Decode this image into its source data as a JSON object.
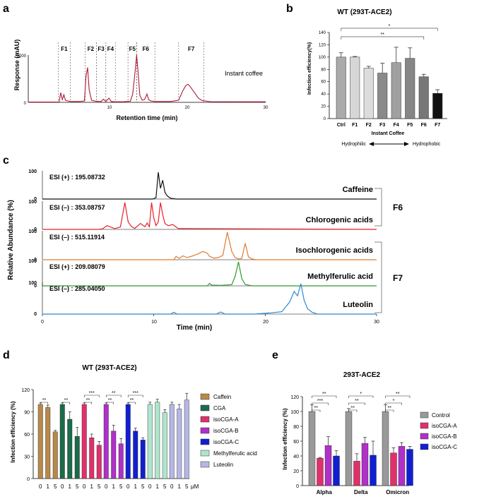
{
  "panel_labels": {
    "a": "a",
    "b": "b",
    "c": "c",
    "d": "d",
    "e": "e"
  },
  "colors": {
    "chrom_a": "#b01835",
    "caffeine": "#111111",
    "chlorogenic": "#e8202a",
    "isochlorogenic": "#e07a2e",
    "methylferulic": "#2f9a2f",
    "luteolin": "#2d86d0",
    "ctrl_bar": "#aaaaaa",
    "f7_bar": "#111111",
    "caffein_bar": "#b8894a",
    "cga_bar": "#1c6b4a",
    "isocga_a_bar": "#e0306a",
    "isocga_b_bar": "#b030c8",
    "isocga_c_bar": "#1020d0",
    "mfa_bar": "#aee6cc",
    "luteolin_bar": "#b6b6e6",
    "control_bar": "#999999"
  },
  "chart_data": [
    {
      "id": "a",
      "type": "line",
      "xlabel": "Retention time (min)",
      "ylabel": "Response (mAU)",
      "xlim": [
        0,
        30
      ],
      "ylim": [
        0,
        3600
      ],
      "x_ticks": [
        "10",
        "20",
        "30"
      ],
      "y_ticks": [
        "0",
        "3000"
      ],
      "annotation": "Instant coffee",
      "fractions": [
        {
          "label": "F1",
          "start": 3.8,
          "end": 5.3
        },
        {
          "label": "F2",
          "start": 7.2,
          "end": 8.6
        },
        {
          "label": "F3",
          "start": 8.6,
          "end": 9.8
        },
        {
          "label": "F4",
          "start": 9.8,
          "end": 11.0
        },
        {
          "label": "F5",
          "start": 12.6,
          "end": 13.7
        },
        {
          "label": "F6",
          "start": 13.7,
          "end": 16.0
        },
        {
          "label": "F7",
          "start": 19.0,
          "end": 22.2
        }
      ],
      "series": [
        {
          "name": "Instant coffee",
          "x": [
            0,
            3.9,
            4.1,
            4.3,
            4.5,
            4.7,
            5.0,
            5.3,
            6.5,
            7.1,
            7.3,
            7.5,
            7.7,
            8.0,
            8.5,
            9.2,
            9.5,
            9.8,
            10.2,
            10.5,
            11.0,
            12.0,
            12.9,
            13.2,
            13.5,
            13.7,
            13.9,
            14.1,
            14.4,
            14.7,
            15.0,
            15.2,
            15.5,
            16.0,
            18.0,
            19.0,
            19.5,
            19.9,
            20.2,
            20.5,
            21.0,
            21.5,
            22.0,
            23.0,
            30
          ],
          "y": [
            20,
            30,
            700,
            200,
            550,
            150,
            100,
            60,
            60,
            100,
            1900,
            2500,
            900,
            150,
            80,
            60,
            230,
            60,
            300,
            60,
            40,
            40,
            80,
            600,
            2200,
            3400,
            2000,
            500,
            150,
            200,
            600,
            200,
            100,
            60,
            60,
            150,
            800,
            1200,
            1300,
            1100,
            700,
            300,
            120,
            50,
            40
          ]
        }
      ]
    },
    {
      "id": "b",
      "type": "bar",
      "title": "WT (293T-ACE2)",
      "ylabel": "Infection efficiency(%)",
      "xlabel": "Instant Coffee",
      "ylim": [
        0,
        140
      ],
      "y_ticks": [
        "0",
        "20",
        "40",
        "60",
        "80",
        "100",
        "120",
        "140"
      ],
      "categories": [
        "Ctrl",
        "F1",
        "F2",
        "F3",
        "F4",
        "F5",
        "F6",
        "F7"
      ],
      "values": [
        100,
        100,
        82,
        74,
        91,
        98,
        68,
        41
      ],
      "errors": [
        7,
        1,
        3,
        16,
        25,
        17,
        4,
        6
      ],
      "fills": [
        "#aaaaaa",
        "#d6d6d6",
        "#dcdcdc",
        "#8a8a8a",
        "#a0a0a0",
        "#868686",
        "#777777",
        "#111111"
      ],
      "sig": [
        {
          "from": "Ctrl",
          "to": "F6",
          "label": "**"
        },
        {
          "from": "Ctrl",
          "to": "F7",
          "label": "*"
        }
      ],
      "hydro_left": "Hydrophilic",
      "hydro_right": "Hydrophobic"
    },
    {
      "id": "c",
      "type": "line",
      "xlabel": "Time (min)",
      "ylabel": "Relative Abundance (%)",
      "xlim": [
        0,
        30
      ],
      "x_ticks": [
        "0",
        "10",
        "20",
        "30"
      ],
      "group_labels": [
        {
          "label": "F6",
          "span": [
            "Caffeine",
            "Chlorogenic acids"
          ]
        },
        {
          "label": "F7",
          "span": [
            "Isochlorogenic acids",
            "Methylferulic acid",
            "Luteolin"
          ]
        }
      ],
      "series": [
        {
          "name": "Caffeine",
          "ion": "ESI (+) : 195.08732",
          "color_key": "caffeine",
          "x": [
            0,
            9.9,
            10.2,
            10.4,
            10.6,
            10.8,
            11.0,
            11.2,
            11.5,
            12,
            30
          ],
          "y": [
            0,
            0,
            5,
            100,
            40,
            70,
            25,
            12,
            3,
            0,
            0
          ]
        },
        {
          "name": "Chlorogenic acids",
          "ion": "ESI (–) : 353.08757",
          "color_key": "chlorogenic",
          "x": [
            0,
            5.0,
            5.4,
            5.8,
            6.5,
            7.0,
            7.4,
            7.7,
            8.0,
            8.3,
            8.8,
            9.2,
            9.4,
            9.6,
            9.8,
            10.0,
            10.2,
            10.4,
            10.6,
            10.8,
            11.0,
            11.3,
            11.7,
            12.2,
            30
          ],
          "y": [
            0,
            0,
            2,
            14,
            3,
            9,
            100,
            28,
            10,
            4,
            22,
            10,
            24,
            10,
            100,
            42,
            14,
            28,
            100,
            55,
            22,
            14,
            18,
            3,
            0
          ]
        },
        {
          "name": "Isochlorogenic acids",
          "ion": "ESI (–) : 515.11914",
          "color_key": "isochlorogenic",
          "x": [
            0,
            11.8,
            12.0,
            12.3,
            12.6,
            13.0,
            13.5,
            14.0,
            14.4,
            14.8,
            15.0,
            15.4,
            15.8,
            16.2,
            16.6,
            17.0,
            17.3,
            17.6,
            17.9,
            18.2,
            18.5,
            18.8,
            19.2,
            30
          ],
          "y": [
            0,
            0,
            12,
            5,
            14,
            8,
            14,
            22,
            30,
            24,
            12,
            6,
            8,
            16,
            100,
            30,
            8,
            3,
            5,
            60,
            10,
            3,
            0,
            0
          ]
        },
        {
          "name": "Methylferulic acid",
          "ion": "ESI (+) : 209.08079",
          "color_key": "methylferulic",
          "x": [
            0,
            14.8,
            15.0,
            15.2,
            16.0,
            17.0,
            17.3,
            17.6,
            17.9,
            18.2,
            18.6,
            19.0,
            30
          ],
          "y": [
            0,
            0,
            10,
            3,
            2,
            5,
            40,
            100,
            30,
            6,
            2,
            0,
            0
          ]
        },
        {
          "name": "Luteolin",
          "ion": "ESI (–) : 285.04050",
          "color_key": "luteolin",
          "x": [
            0,
            11.5,
            11.8,
            12.1,
            15.6,
            16.0,
            16.4,
            19.0,
            20.5,
            21.5,
            22.2,
            22.6,
            22.9,
            23.2,
            23.5,
            23.8,
            24.2,
            24.7,
            30
          ],
          "y": [
            0,
            0,
            6,
            0,
            0,
            7,
            0,
            0,
            4,
            8,
            40,
            75,
            60,
            100,
            45,
            18,
            6,
            0,
            0
          ]
        }
      ]
    },
    {
      "id": "d",
      "type": "bar",
      "title": "WT (293T-ACE2)",
      "ylabel": "Infection efficiency (%)",
      "ylim": [
        0,
        120
      ],
      "y_ticks": [
        "0",
        "30",
        "60",
        "90",
        "120"
      ],
      "dose_labels": [
        "0",
        "1",
        "5"
      ],
      "unit": "μM",
      "series": [
        {
          "name": "Caffein",
          "color_key": "caffein_bar",
          "values": [
            100,
            96,
            63
          ],
          "errors": [
            2,
            3,
            2
          ],
          "sig": [
            [
              0,
              1,
              "**"
            ]
          ]
        },
        {
          "name": "CGA",
          "color_key": "cga_bar",
          "values": [
            100,
            80,
            57
          ],
          "errors": [
            2,
            10,
            12
          ],
          "sig": [
            [
              0,
              1,
              "**"
            ]
          ]
        },
        {
          "name": "isoCGA-A",
          "color_key": "isocga_a_bar",
          "values": [
            100,
            55,
            45
          ],
          "errors": [
            2,
            5,
            5
          ],
          "sig": [
            [
              0,
              1,
              "**"
            ],
            [
              0,
              2,
              "***"
            ]
          ]
        },
        {
          "name": "isoCGA-B",
          "color_key": "isocga_b_bar",
          "values": [
            100,
            64,
            47
          ],
          "errors": [
            2,
            8,
            7
          ],
          "sig": [
            [
              0,
              1,
              "**"
            ],
            [
              0,
              2,
              "**"
            ]
          ]
        },
        {
          "name": "isoCGA-C",
          "color_key": "isocga_c_bar",
          "values": [
            100,
            64,
            52
          ],
          "errors": [
            2,
            4,
            3
          ],
          "sig": [
            [
              0,
              1,
              "**"
            ],
            [
              0,
              2,
              "***"
            ]
          ]
        },
        {
          "name": "Methylferulic acid",
          "color_key": "mfa_bar",
          "values": [
            100,
            103,
            89
          ],
          "errors": [
            3,
            4,
            4
          ],
          "sig": []
        },
        {
          "name": "Luteolin",
          "color_key": "luteolin_bar",
          "values": [
            100,
            94,
            106
          ],
          "errors": [
            3,
            6,
            9
          ],
          "sig": []
        }
      ]
    },
    {
      "id": "e",
      "type": "bar",
      "title": "293T-ACE2",
      "ylabel": "Infection efficiency (%)",
      "ylim": [
        0,
        120
      ],
      "y_ticks": [
        "0",
        "20",
        "40",
        "60",
        "80",
        "100",
        "120"
      ],
      "categories": [
        "Alpha",
        "Delta",
        "Omicron"
      ],
      "series": [
        {
          "name": "Control",
          "color_key": "control_bar",
          "values": [
            100,
            100,
            100
          ],
          "errors": [
            9,
            4,
            9
          ]
        },
        {
          "name": "isoCGA-A",
          "color_key": "isocga_a_bar",
          "values": [
            37,
            33,
            44
          ],
          "errors": [
            1,
            10,
            7
          ]
        },
        {
          "name": "isoCGA-B",
          "color_key": "isocga_b_bar",
          "values": [
            54,
            57,
            53
          ],
          "errors": [
            12,
            8,
            5
          ]
        },
        {
          "name": "isoCGA-C",
          "color_key": "isocga_c_bar",
          "values": [
            40,
            41,
            49
          ],
          "errors": [
            7,
            19,
            4
          ]
        }
      ],
      "sig": [
        {
          "category": "Alpha",
          "pairs": [
            [
              0,
              1,
              "**"
            ],
            [
              0,
              2,
              "***"
            ],
            [
              0,
              3,
              "**"
            ]
          ]
        },
        {
          "category": "Delta",
          "pairs": [
            [
              0,
              1,
              "**"
            ],
            [
              0,
              2,
              "**"
            ],
            [
              0,
              3,
              "*"
            ]
          ]
        },
        {
          "category": "Omicron",
          "pairs": [
            [
              0,
              1,
              "**"
            ],
            [
              0,
              2,
              "*"
            ],
            [
              0,
              3,
              "**"
            ]
          ]
        }
      ]
    }
  ]
}
